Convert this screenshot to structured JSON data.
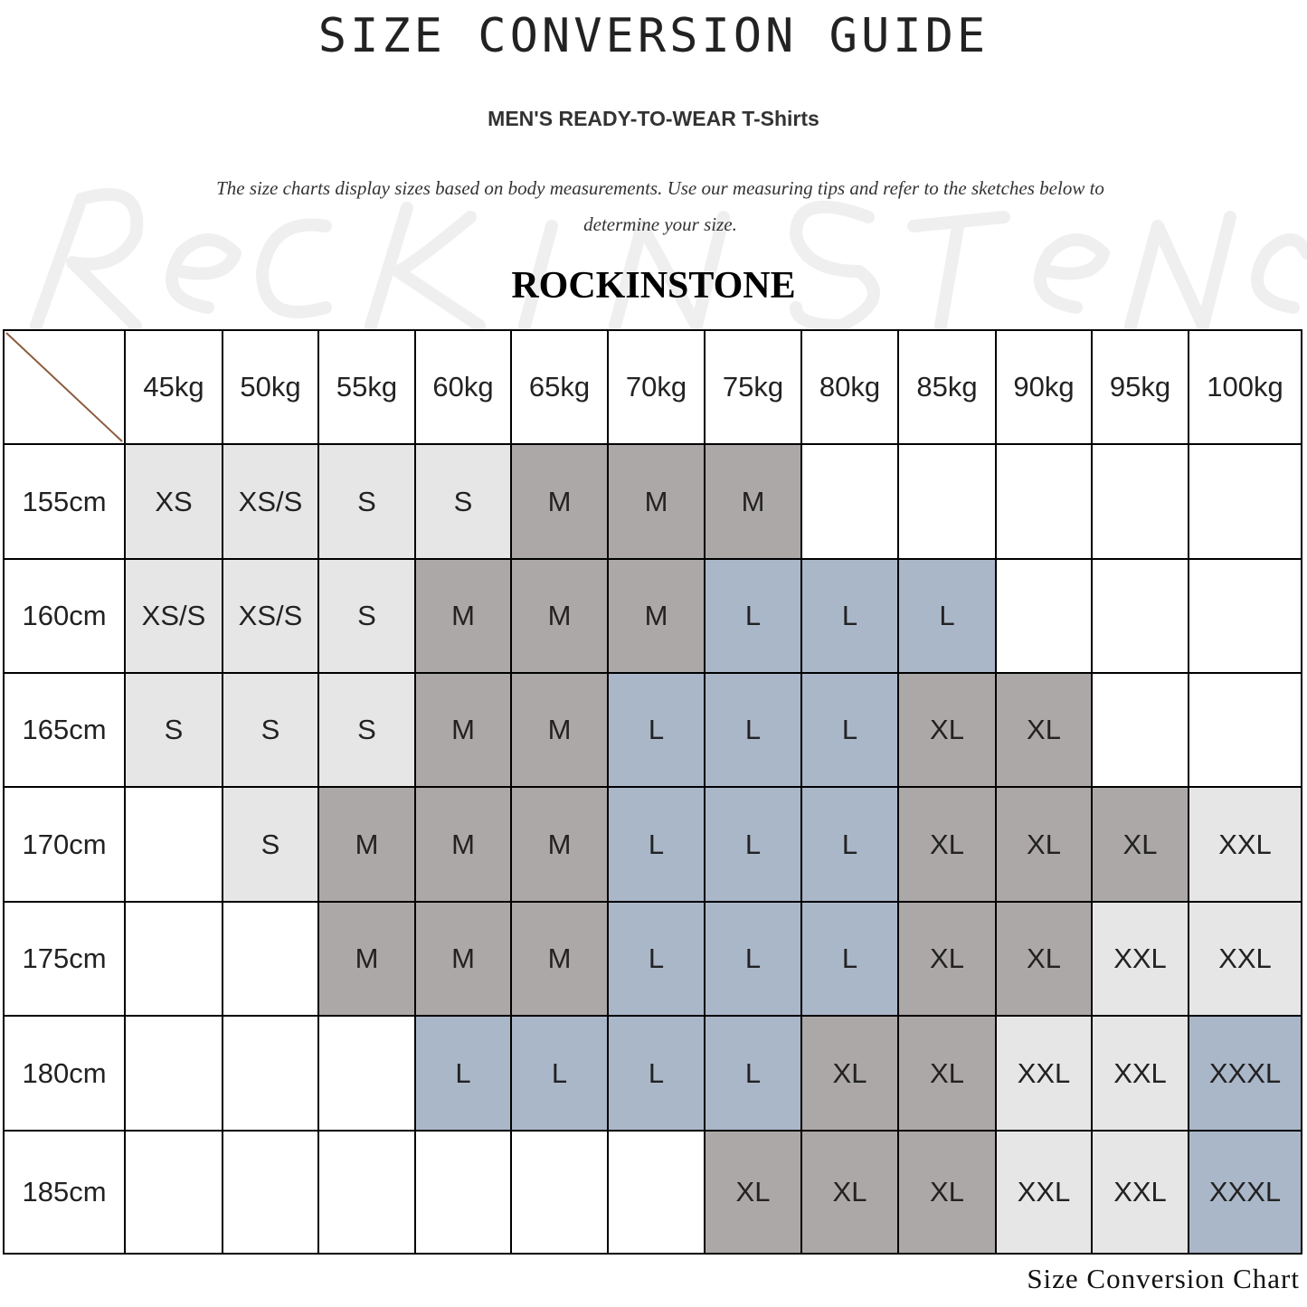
{
  "watermark": "ROCK IN STONE",
  "title": "SIZE CONVERSION GUIDE",
  "subtitle": "MEN'S READY-TO-WEAR T-Shirts",
  "description": "The size charts display sizes based on body measurements. Use our measuring tips and refer to the sketches below to determine your size.",
  "brand": "ROCKINSTONE",
  "footer": "Size Conversion Chart",
  "colors": {
    "XS": "#e6e6e6",
    "XS/S": "#e6e6e6",
    "S": "#e6e6e6",
    "M": "#aca8a7",
    "L": "#aab7c9",
    "XL": "#aca8a7",
    "XXL": "#e6e6e6",
    "XXXL": "#aab7c9",
    "diagonal": "#8b5a3c"
  },
  "table": {
    "columns": [
      "45kg",
      "50kg",
      "55kg",
      "60kg",
      "65kg",
      "70kg",
      "75kg",
      "80kg",
      "85kg",
      "90kg",
      "95kg",
      "100kg"
    ],
    "rows": [
      {
        "height": "155cm",
        "sizes": [
          "XS",
          "XS/S",
          "S",
          "S",
          "M",
          "M",
          "M",
          "",
          "",
          "",
          "",
          ""
        ]
      },
      {
        "height": "160cm",
        "sizes": [
          "XS/S",
          "XS/S",
          "S",
          "M",
          "M",
          "M",
          "L",
          "L",
          "L",
          "",
          "",
          ""
        ]
      },
      {
        "height": "165cm",
        "sizes": [
          "S",
          "S",
          "S",
          "M",
          "M",
          "L",
          "L",
          "L",
          "XL",
          "XL",
          "",
          ""
        ]
      },
      {
        "height": "170cm",
        "sizes": [
          "",
          "S",
          "M",
          "M",
          "M",
          "L",
          "L",
          "L",
          "XL",
          "XL",
          "XL",
          "XXL"
        ]
      },
      {
        "height": "175cm",
        "sizes": [
          "",
          "",
          "M",
          "M",
          "M",
          "L",
          "L",
          "L",
          "XL",
          "XL",
          "XXL",
          "XXL"
        ]
      },
      {
        "height": "180cm",
        "sizes": [
          "",
          "",
          "",
          "L",
          "L",
          "L",
          "L",
          "XL",
          "XL",
          "XXL",
          "XXL",
          "XXXL"
        ]
      },
      {
        "height": "185cm",
        "sizes": [
          "",
          "",
          "",
          "",
          "",
          "",
          "XL",
          "XL",
          "XL",
          "XXL",
          "XXL",
          "XXXL"
        ]
      }
    ]
  }
}
